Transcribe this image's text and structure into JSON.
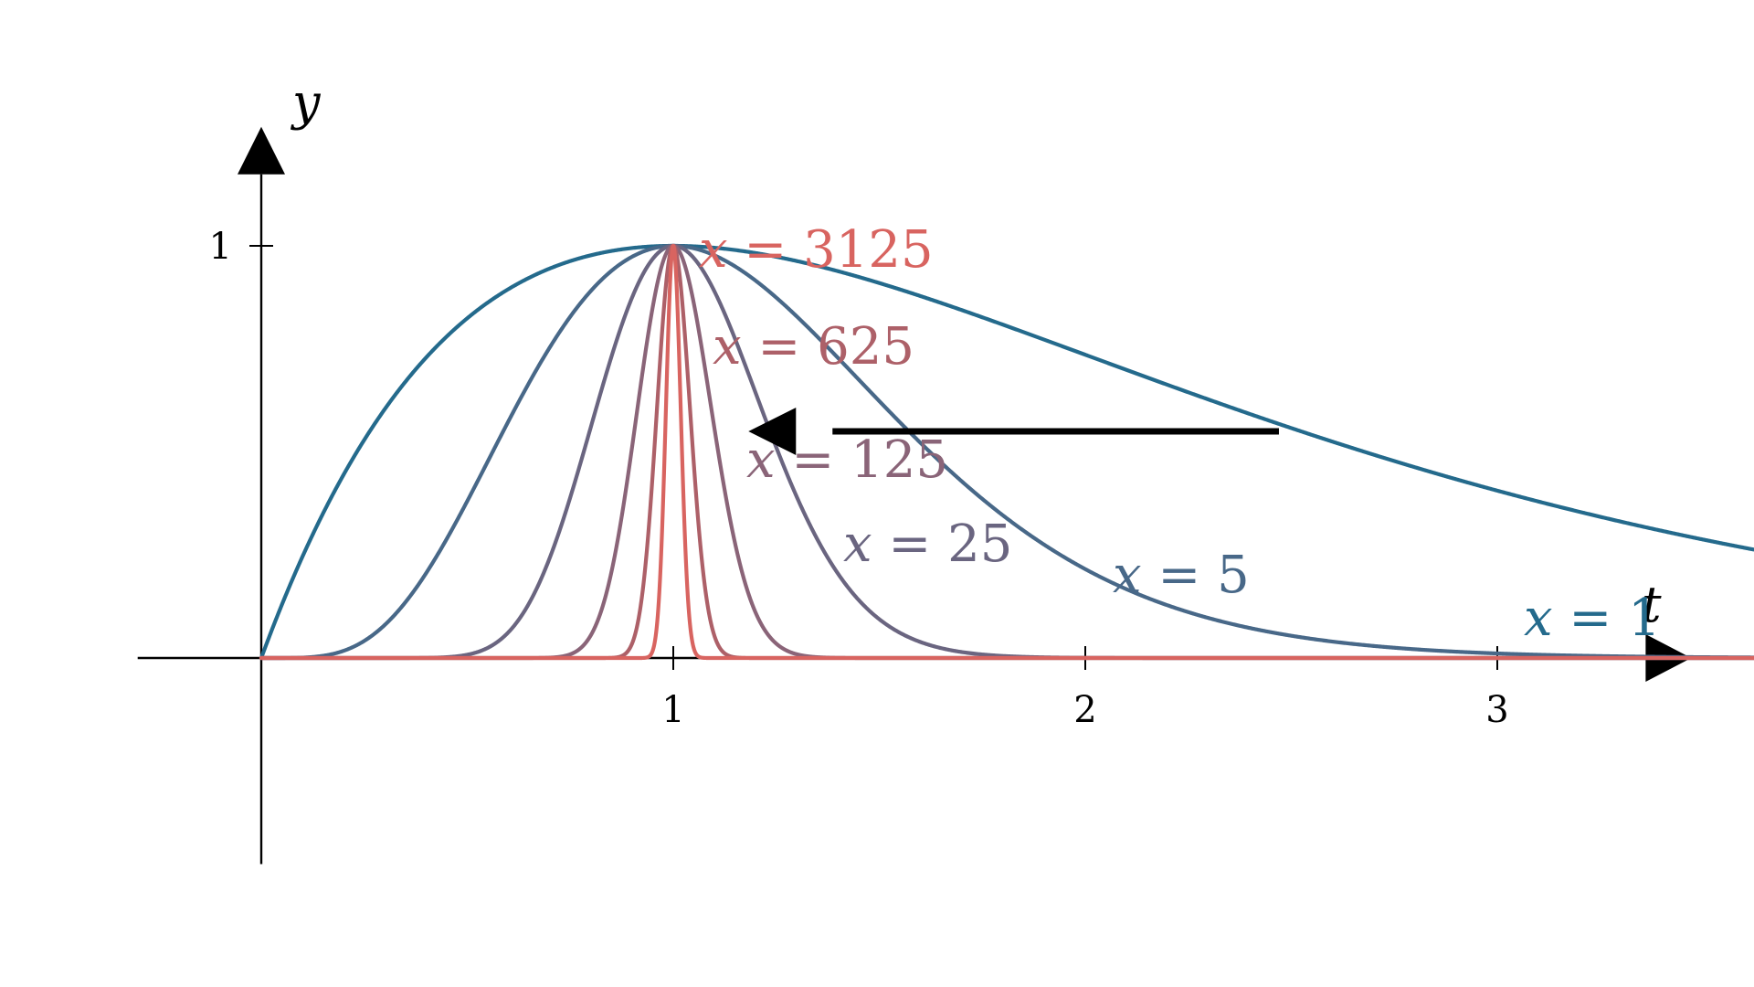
{
  "chart_data": {
    "type": "line",
    "x_axis": {
      "title": "t",
      "ticks": [
        1,
        2,
        3
      ],
      "tick_labels": [
        "1",
        "2",
        "3"
      ],
      "range": [
        -0.3,
        3.64
      ]
    },
    "y_axis": {
      "title": "y",
      "ticks": [
        1
      ],
      "tick_labels": [
        "1"
      ],
      "range": [
        -0.5,
        1.28
      ]
    },
    "grid": false,
    "series": [
      {
        "name": "x = 1",
        "x_param": 1,
        "color": "#246a8c"
      },
      {
        "name": "x = 5",
        "x_param": 5,
        "color": "#486888"
      },
      {
        "name": "x = 25",
        "x_param": 25,
        "color": "#6a6580"
      },
      {
        "name": "x = 125",
        "x_param": 125,
        "color": "#8a6478"
      },
      {
        "name": "x = 625",
        "x_param": 625,
        "color": "#ad6068"
      },
      {
        "name": "x = 3125",
        "x_param": 3125,
        "color": "#d86460"
      }
    ],
    "labels": [
      {
        "var": "x",
        "text": "= 1"
      },
      {
        "var": "x",
        "text": "= 5"
      },
      {
        "var": "x",
        "text": "= 25"
      },
      {
        "var": "x",
        "text": "= 125"
      },
      {
        "var": "x",
        "text": "= 625"
      },
      {
        "var": "x",
        "text": "= 3125"
      }
    ],
    "annotation_arrow": {
      "direction": "left",
      "from_t": 2.47,
      "to_t": 1.28,
      "at_y": 0.55
    }
  }
}
